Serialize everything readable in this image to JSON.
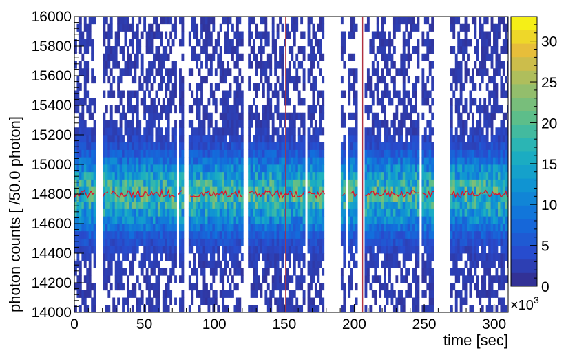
{
  "chart_data": {
    "type": "heatmap",
    "title": "",
    "xlabel": "time [sec]",
    "ylabel": "photon counts [ /50.0 photon]",
    "xlim": [
      0,
      310
    ],
    "ylim": [
      14000,
      16000
    ],
    "x_ticks": [
      "0",
      "50",
      "100",
      "150",
      "200",
      "250",
      "300"
    ],
    "y_ticks": [
      "14000",
      "14200",
      "14400",
      "14600",
      "14800",
      "15000",
      "15200",
      "15400",
      "15600",
      "15800",
      "16000"
    ],
    "bin_width_y": 50,
    "z_range": [
      0,
      33000
    ],
    "colorbar_ticks": [
      "0",
      "5",
      "10",
      "15",
      "20",
      "25",
      "30"
    ],
    "colorbar_exponent": "×10",
    "colorbar_exponent_power": "3",
    "gaps_sec": [
      [
        15,
        20
      ],
      [
        25,
        26
      ],
      [
        73,
        74
      ],
      [
        78,
        82
      ],
      [
        121,
        124
      ],
      [
        165,
        166
      ],
      [
        179,
        190
      ],
      [
        194,
        196
      ],
      [
        202,
        207
      ],
      [
        246,
        248
      ],
      [
        257,
        268
      ]
    ],
    "vertical_lines_sec": [
      151,
      206
    ],
    "mean_profile": {
      "name": "",
      "value_approx": 14800,
      "color": "#e0102a"
    },
    "colors": {
      "low": "#3548a8",
      "mid": "#1ea8c8",
      "high_mid": "#7fbc6b",
      "high": "#ffff14"
    }
  }
}
